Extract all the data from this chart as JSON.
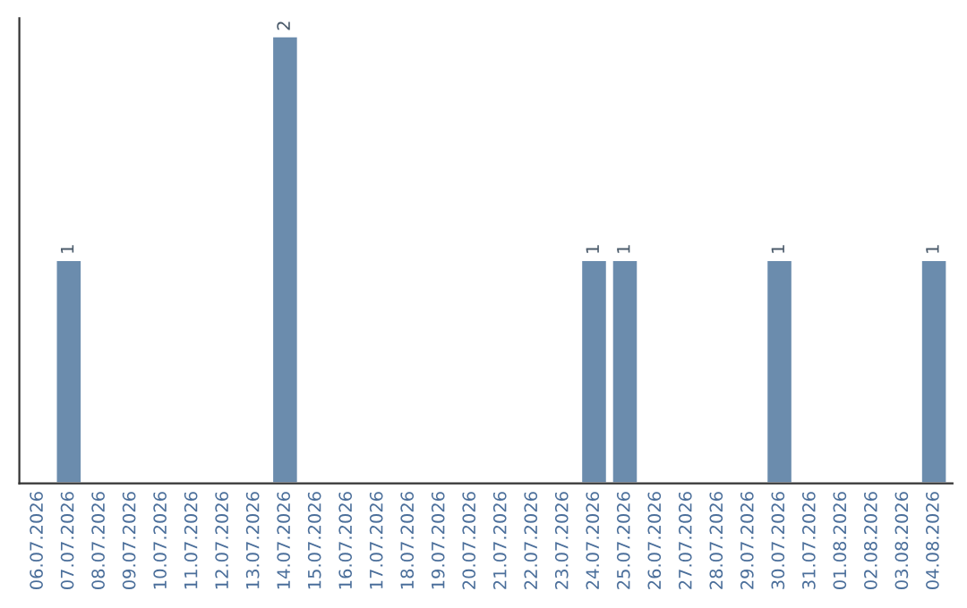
{
  "chart_data": {
    "type": "bar",
    "categories": [
      "06.07.2026",
      "07.07.2026",
      "08.07.2026",
      "09.07.2026",
      "10.07.2026",
      "11.07.2026",
      "12.07.2026",
      "13.07.2026",
      "14.07.2026",
      "15.07.2026",
      "16.07.2026",
      "17.07.2026",
      "18.07.2026",
      "19.07.2026",
      "20.07.2026",
      "21.07.2026",
      "22.07.2026",
      "23.07.2026",
      "24.07.2026",
      "25.07.2026",
      "26.07.2026",
      "27.07.2026",
      "28.07.2026",
      "29.07.2026",
      "30.07.2026",
      "31.07.2026",
      "01.08.2026",
      "02.08.2026",
      "03.08.2026",
      "04.08.2026"
    ],
    "values": [
      0,
      1,
      0,
      0,
      0,
      0,
      0,
      0,
      2,
      0,
      0,
      0,
      0,
      0,
      0,
      0,
      0,
      0,
      1,
      1,
      0,
      0,
      0,
      0,
      1,
      0,
      0,
      0,
      0,
      1
    ],
    "value_labels": [
      null,
      "1",
      null,
      null,
      null,
      null,
      null,
      null,
      "2",
      null,
      null,
      null,
      null,
      null,
      null,
      null,
      null,
      null,
      "1",
      "1",
      null,
      null,
      null,
      null,
      "1",
      null,
      null,
      null,
      null,
      "1"
    ],
    "color": "#6b8cad",
    "grid": false,
    "legend": false
  }
}
